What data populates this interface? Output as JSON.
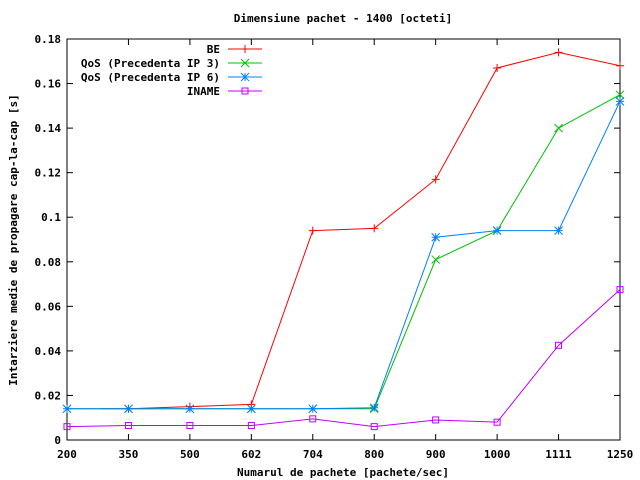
{
  "chart_data": {
    "type": "line",
    "title": "Dimensiune pachet - 1400 [octeti]",
    "xlabel": "Numarul de pachete [pachete/sec]",
    "ylabel": "Intarziere medie de propagare cap-la-cap [s]",
    "categories": [
      "200",
      "350",
      "500",
      "602",
      "704",
      "800",
      "900",
      "1000",
      "1111",
      "1250"
    ],
    "ylim": [
      0,
      0.18
    ],
    "yticks": [
      "0",
      "0.02",
      "0.04",
      "0.06",
      "0.08",
      "0.1",
      "0.12",
      "0.14",
      "0.16",
      "0.18"
    ],
    "grid": false,
    "legend_position": "top-left",
    "series": [
      {
        "name": "BE",
        "color": "#ff0000",
        "marker": "plus",
        "values": [
          null,
          0.014,
          0.015,
          0.016,
          0.094,
          0.095,
          0.117,
          0.167,
          0.174,
          0.168
        ]
      },
      {
        "name": "QoS (Precedenta IP 3)",
        "color": "#00c000",
        "marker": "cross",
        "values": [
          0.014,
          0.014,
          0.014,
          0.014,
          0.014,
          0.014,
          0.081,
          0.094,
          0.14,
          0.155
        ]
      },
      {
        "name": "QoS (Precedenta IP 6)",
        "color": "#0080ff",
        "marker": "star",
        "values": [
          0.014,
          0.014,
          0.014,
          0.014,
          0.014,
          0.0145,
          0.091,
          0.094,
          0.094,
          0.152
        ]
      },
      {
        "name": "INAME",
        "color": "#c000ff",
        "marker": "square",
        "values": [
          0.006,
          0.0065,
          0.0065,
          0.0065,
          0.0095,
          0.006,
          0.009,
          0.008,
          0.0425,
          0.0675
        ]
      }
    ]
  }
}
